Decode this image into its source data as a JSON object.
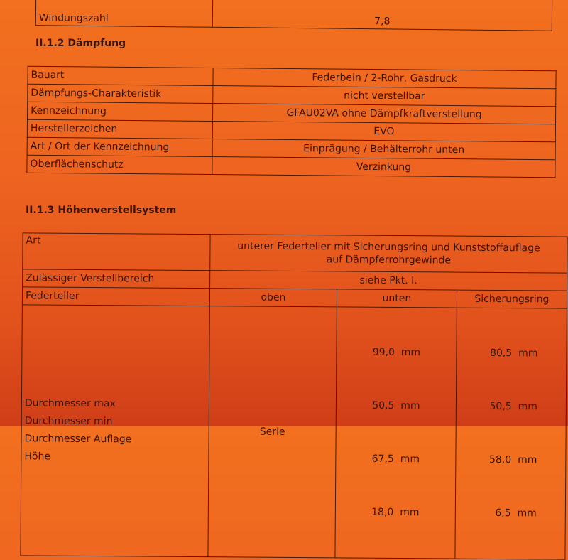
{
  "top_table": {
    "label": "Windungszahl",
    "value": "7,8"
  },
  "section_damping": {
    "title": "II.1.2 Dämpfung",
    "rows": [
      {
        "label": "Bauart",
        "value": "Federbein / 2-Rohr, Gasdruck"
      },
      {
        "label": "Dämpfungs-Charakteristik",
        "value": "nicht verstellbar"
      },
      {
        "label": "Kennzeichnung",
        "value": "GFAU02VA ohne Dämpfkraftverstellung"
      },
      {
        "label": "Herstellerzeichen",
        "value": "EVO"
      },
      {
        "label": "Art / Ort der Kennzeichnung",
        "value": "Einprägung / Behälterrohr unten"
      },
      {
        "label": "Oberflächenschutz",
        "value": "Verzinkung"
      }
    ]
  },
  "section_height": {
    "title": "II.1.3 Höhenverstellsystem",
    "art_label": "Art",
    "art_value_1": "unterer Federteller mit Sicherungsring und Kunststoffauflage",
    "art_value_2": "auf Dämpferrohrgewinde",
    "range_label": "Zulässiger Verstellbereich",
    "range_value": "siehe Pkt. I.",
    "headers": [
      "Federteller",
      "oben",
      "unten",
      "Sicherungsring"
    ],
    "oben_value": "Serie",
    "rows": [
      {
        "label": "Durchmesser max",
        "unten": "99,0  mm",
        "ring": "80,5  mm"
      },
      {
        "label": "Durchmesser min",
        "unten": "50,5  mm",
        "ring": "50,5  mm"
      },
      {
        "label": "Durchmesser Auflage",
        "unten": "67,5  mm",
        "ring": "58,0  mm"
      },
      {
        "label": "Höhe",
        "unten": "18,0  mm",
        "ring": "6,5  mm"
      }
    ]
  }
}
